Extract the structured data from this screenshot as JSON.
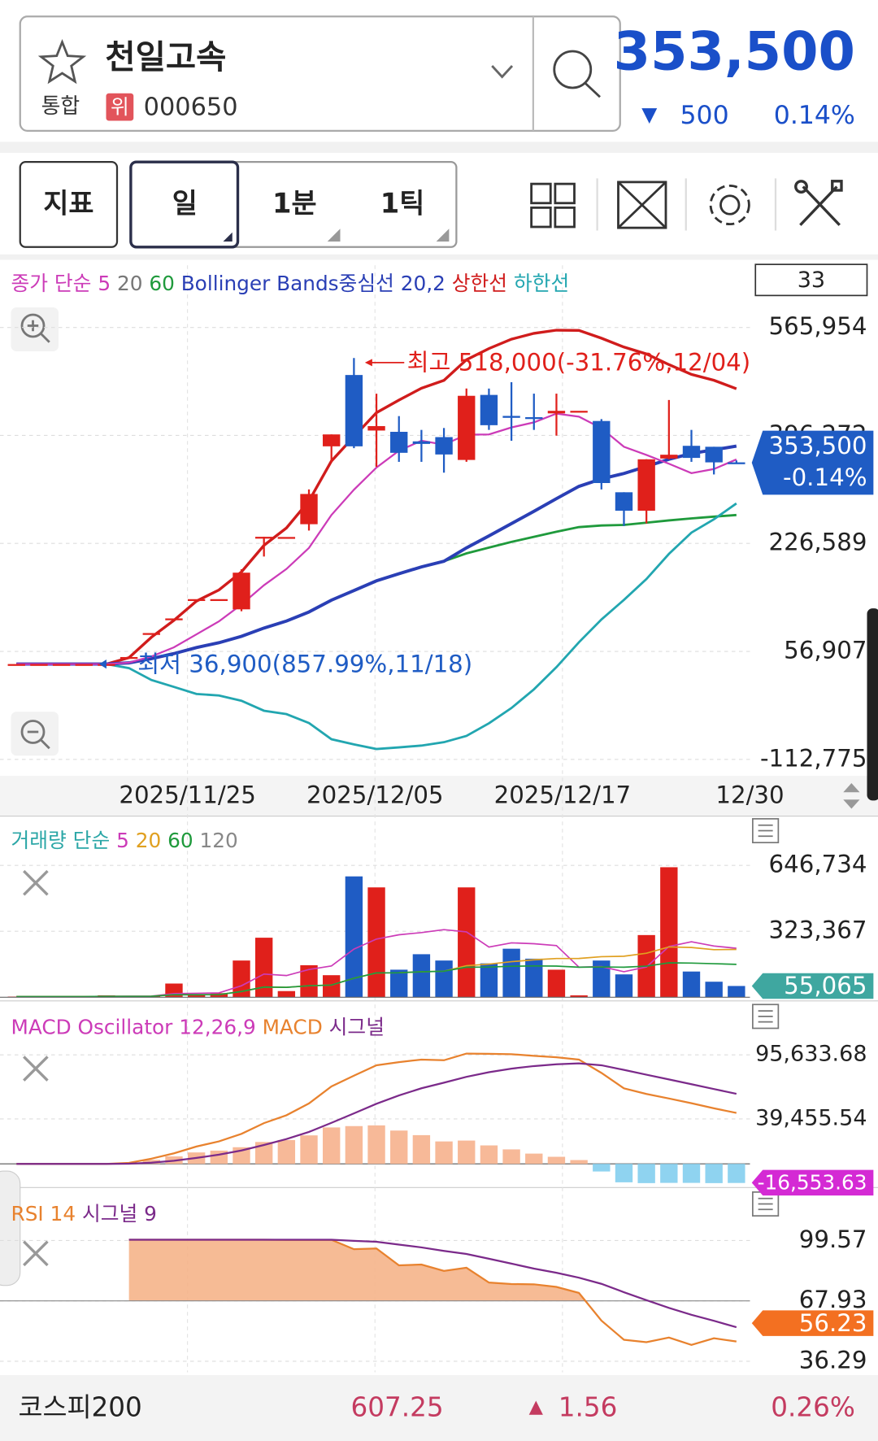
{
  "header": {
    "name": "천일고속",
    "market": "통합",
    "badge": "위",
    "code": "000650",
    "price": "353,500",
    "change_arrow": "▼",
    "change": "500",
    "change_pct": "0.14%"
  },
  "toolbar": {
    "buttons": [
      "지표",
      "일",
      "1분",
      "1틱"
    ]
  },
  "main_chart": {
    "type": "candlestick",
    "legend": [
      {
        "text": "종가 단순",
        "color": "#cc3bb8"
      },
      {
        "text": "5",
        "color": "#cc3bb8"
      },
      {
        "text": "20",
        "color": "#777777"
      },
      {
        "text": "60",
        "color": "#1f9a3c"
      },
      {
        "text": "Bollinger Bands중심선 20,2",
        "color": "#2a3fb5"
      },
      {
        "text": "상한선",
        "color": "#d01c1c"
      },
      {
        "text": "하한선",
        "color": "#22a6b0"
      }
    ],
    "count": "33",
    "high_note": "최고 518,000(-31.76%,12/04)",
    "low_note": "최저 36,900(857.99%,11/18)",
    "dates": [
      "2025/11/25",
      "2025/12/05",
      "2025/12/17",
      "12/30"
    ],
    "ylim": [
      -138650,
      663700
    ],
    "yticks": [
      {
        "value": 565954,
        "label": "565,954"
      },
      {
        "value": 396272,
        "label": "396,272"
      },
      {
        "value": 226589,
        "label": "226,589"
      },
      {
        "value": 56907,
        "label": "56,907"
      },
      {
        "value": -112775,
        "label": "-112,775"
      }
    ],
    "up_color": "#e0201b",
    "down_color": "#1f5cc4",
    "open": [
      37000,
      37000,
      37000,
      37000,
      37000,
      48000,
      85700,
      108700,
      139000,
      139000,
      123000,
      236000,
      236700,
      256800,
      379200,
      491300,
      404000,
      402000,
      387000,
      393700,
      357800,
      460000,
      427000,
      425000,
      431000,
      435000,
      419000,
      307000,
      278000,
      360000,
      380000,
      378500,
      354000
    ],
    "high": [
      37000,
      37000,
      37000,
      37000,
      37000,
      48000,
      85700,
      108700,
      139000,
      139000,
      186000,
      237000,
      236700,
      311500,
      397900,
      518000,
      462000,
      426700,
      405000,
      408000,
      470000,
      470000,
      480000,
      462000,
      462000,
      435000,
      422000,
      307000,
      358800,
      452000,
      405000,
      378500,
      357000
    ],
    "low": [
      37000,
      37000,
      37000,
      37000,
      36900,
      48000,
      85700,
      108700,
      139000,
      139000,
      120000,
      206000,
      236700,
      246800,
      354000,
      376300,
      347000,
      354800,
      354800,
      337800,
      354800,
      405000,
      388000,
      405000,
      396000,
      435000,
      311500,
      254000,
      258000,
      358800,
      354800,
      335000,
      352000
    ],
    "close": [
      37000,
      37000,
      37000,
      37000,
      37000,
      48000,
      85700,
      108700,
      139000,
      139000,
      180600,
      237000,
      236700,
      304300,
      397900,
      379200,
      411000,
      369000,
      383000,
      366400,
      458600,
      412400,
      424000,
      423000,
      435000,
      435000,
      321500,
      278000,
      358800,
      366000,
      361000,
      354000,
      353500
    ],
    "badge": {
      "value": 353500,
      "label": "353,500",
      "sub": "-0.14%",
      "color": "#1f5cc4"
    }
  },
  "volume_chart": {
    "type": "bar",
    "legend": [
      {
        "text": "거래량 단순",
        "color": "#2aa6a6"
      },
      {
        "text": "5",
        "color": "#cc3bb8"
      },
      {
        "text": "20",
        "color": "#e0a020"
      },
      {
        "text": "60",
        "color": "#1f9a3c"
      },
      {
        "text": "120",
        "color": "#888888"
      }
    ],
    "ylim": [
      0,
      875700
    ],
    "yticks": [
      {
        "value": 646734,
        "label": "646,734"
      },
      {
        "value": 323367,
        "label": "323,367"
      }
    ],
    "values": [
      3000,
      3000,
      3000,
      3000,
      9000,
      5000,
      5000,
      67000,
      9000,
      20000,
      180000,
      292000,
      30000,
      157000,
      108000,
      593000,
      539000,
      135000,
      211000,
      180000,
      539000,
      166000,
      238000,
      189000,
      135000,
      9000,
      180000,
      112000,
      305000,
      638000,
      126000,
      76000,
      55065
    ],
    "badge": {
      "value": 55065,
      "label": "55,065",
      "color": "#3fa7a0"
    }
  },
  "macd_chart": {
    "type": "macd",
    "legend": [
      {
        "text": "MACD Oscillator 12,26,9",
        "color": "#cc3bb8"
      },
      {
        "text": "MACD",
        "color": "#e8822e"
      },
      {
        "text": "시그널",
        "color": "#7b2a8a"
      }
    ],
    "ylim": [
      -19128,
      140575
    ],
    "yticks": [
      {
        "value": 95633.68,
        "label": "95,633.68"
      },
      {
        "value": 39455.54,
        "label": "39,455.54"
      }
    ],
    "badge": {
      "value": -16553.63,
      "label": "-16,553.63",
      "color": "#d42ad4"
    }
  },
  "rsi_chart": {
    "type": "rsi",
    "legend": [
      {
        "text": "RSI 14",
        "color": "#e8822e"
      },
      {
        "text": "시그널 9",
        "color": "#7b2a8a"
      }
    ],
    "ylim": [
      30.5,
      126.4
    ],
    "yticks": [
      99.57,
      67.93,
      36.29
    ],
    "badge": {
      "value": 56.23,
      "label": "56.23",
      "color": "#f37021"
    }
  },
  "footer": {
    "index": "코스피200",
    "value": "607.25",
    "arrow": "▲",
    "change": "1.56",
    "change_pct": "0.26%"
  }
}
